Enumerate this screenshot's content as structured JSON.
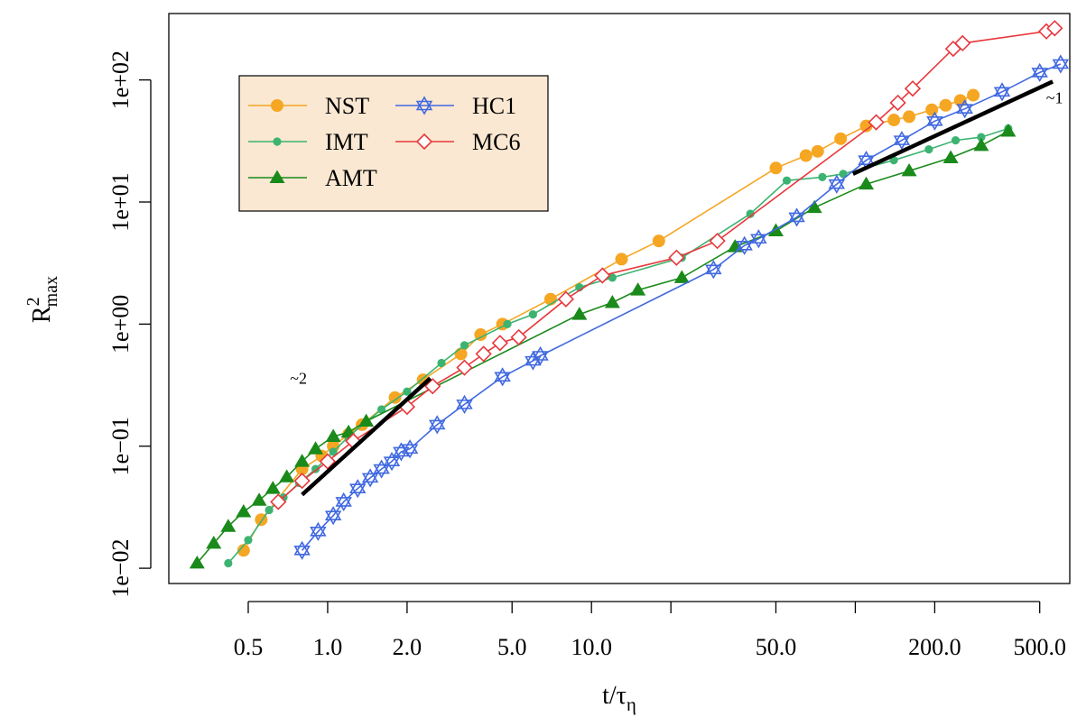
{
  "chart_data": {
    "type": "scatter",
    "x_scale": "log",
    "y_scale": "log",
    "xlim": [
      0.25,
      650
    ],
    "ylim": [
      0.0075,
      350
    ],
    "xlabel": {
      "base": "t/τ",
      "sub": "η"
    },
    "ylabel": {
      "base": "R",
      "sup": "2",
      "sub": "max"
    },
    "x_ticks": [
      0.5,
      1,
      2,
      5,
      10,
      20,
      50,
      100,
      200,
      500
    ],
    "x_tick_labels": [
      "0.5",
      "1.0",
      "2.0",
      "5.0",
      "10.0",
      "",
      "50.0",
      "",
      "200.0",
      "500.0"
    ],
    "y_ticks": [
      0.01,
      0.1,
      1,
      10,
      100
    ],
    "y_tick_labels": [
      "1e−02",
      "1e−01",
      "1e+00",
      "1e+01",
      "1e+02"
    ],
    "legend_position": "top-left",
    "series": [
      {
        "name": "NST",
        "color": "#F5A623",
        "marker": "filled-circle",
        "points": [
          [
            0.48,
            0.014
          ],
          [
            0.56,
            0.025
          ],
          [
            0.8,
            0.065
          ],
          [
            0.95,
            0.083
          ],
          [
            1.05,
            0.1
          ],
          [
            1.2,
            0.125
          ],
          [
            1.35,
            0.15
          ],
          [
            1.8,
            0.25
          ],
          [
            2.3,
            0.35
          ],
          [
            3.2,
            0.57
          ],
          [
            3.8,
            0.82
          ],
          [
            4.6,
            1.0
          ],
          [
            7,
            1.6
          ],
          [
            13,
            3.4
          ],
          [
            18,
            4.8
          ],
          [
            50,
            19
          ],
          [
            65,
            24
          ],
          [
            72,
            26
          ],
          [
            88,
            33
          ],
          [
            110,
            42
          ],
          [
            140,
            47
          ],
          [
            160,
            50
          ],
          [
            195,
            57
          ],
          [
            220,
            62
          ],
          [
            250,
            68
          ],
          [
            280,
            75
          ]
        ]
      },
      {
        "name": "IMT",
        "color": "#3CB371",
        "marker": "small-circle",
        "points": [
          [
            0.42,
            0.011
          ],
          [
            0.5,
            0.017
          ],
          [
            0.6,
            0.03
          ],
          [
            0.68,
            0.038
          ],
          [
            0.78,
            0.05
          ],
          [
            0.9,
            0.065
          ],
          [
            1.05,
            0.09
          ],
          [
            1.2,
            0.12
          ],
          [
            1.6,
            0.2
          ],
          [
            2.0,
            0.28
          ],
          [
            2.7,
            0.48
          ],
          [
            3.3,
            0.67
          ],
          [
            4.8,
            1.0
          ],
          [
            6,
            1.2
          ],
          [
            9,
            2.0
          ],
          [
            12,
            2.4
          ],
          [
            22,
            3.5
          ],
          [
            40,
            8
          ],
          [
            55,
            15
          ],
          [
            75,
            16
          ],
          [
            90,
            17
          ],
          [
            140,
            22
          ],
          [
            190,
            27
          ],
          [
            240,
            32
          ],
          [
            300,
            34
          ],
          [
            380,
            40
          ]
        ]
      },
      {
        "name": "AMT",
        "color": "#1A8A1A",
        "marker": "filled-triangle",
        "points": [
          [
            0.32,
            0.011
          ],
          [
            0.37,
            0.016
          ],
          [
            0.42,
            0.022
          ],
          [
            0.48,
            0.029
          ],
          [
            0.55,
            0.036
          ],
          [
            0.62,
            0.045
          ],
          [
            0.7,
            0.056
          ],
          [
            0.8,
            0.075
          ],
          [
            0.9,
            0.095
          ],
          [
            1.05,
            0.12
          ],
          [
            1.2,
            0.13
          ],
          [
            1.4,
            0.16
          ],
          [
            9,
            1.2
          ],
          [
            12,
            1.5
          ],
          [
            15,
            1.9
          ],
          [
            22,
            2.4
          ],
          [
            35,
            4.3
          ],
          [
            50,
            5.8
          ],
          [
            70,
            9
          ],
          [
            110,
            14
          ],
          [
            160,
            18
          ],
          [
            230,
            23
          ],
          [
            300,
            29
          ],
          [
            380,
            38
          ]
        ]
      },
      {
        "name": "HC1",
        "color": "#4169E1",
        "marker": "hexagram",
        "points": [
          [
            0.8,
            0.014
          ],
          [
            0.92,
            0.02
          ],
          [
            1.05,
            0.027
          ],
          [
            1.15,
            0.035
          ],
          [
            1.3,
            0.045
          ],
          [
            1.45,
            0.055
          ],
          [
            1.6,
            0.065
          ],
          [
            1.75,
            0.075
          ],
          [
            1.9,
            0.09
          ],
          [
            2.05,
            0.095
          ],
          [
            2.6,
            0.15
          ],
          [
            3.3,
            0.22
          ],
          [
            4.6,
            0.37
          ],
          [
            6,
            0.5
          ],
          [
            6.4,
            0.55
          ],
          [
            29,
            2.8
          ],
          [
            38,
            4.4
          ],
          [
            43,
            5
          ],
          [
            60,
            7.5
          ],
          [
            85,
            14
          ],
          [
            110,
            22
          ],
          [
            150,
            32
          ],
          [
            200,
            46
          ],
          [
            260,
            58
          ],
          [
            360,
            80
          ],
          [
            500,
            115
          ],
          [
            600,
            135
          ]
        ]
      },
      {
        "name": "MC6",
        "color": "#E8383D",
        "marker": "open-diamond",
        "points": [
          [
            0.65,
            0.035
          ],
          [
            0.8,
            0.052
          ],
          [
            1.0,
            0.075
          ],
          [
            1.25,
            0.11
          ],
          [
            2.0,
            0.21
          ],
          [
            2.5,
            0.31
          ],
          [
            3.3,
            0.44
          ],
          [
            3.9,
            0.57
          ],
          [
            4.5,
            0.7
          ],
          [
            5.3,
            0.78
          ],
          [
            8,
            1.6
          ],
          [
            11,
            2.5
          ],
          [
            21,
            3.5
          ],
          [
            30,
            4.8
          ],
          [
            120,
            45
          ],
          [
            145,
            65
          ],
          [
            165,
            85
          ],
          [
            235,
            180
          ],
          [
            255,
            200
          ],
          [
            530,
            250
          ],
          [
            570,
            265
          ]
        ]
      }
    ],
    "reference_lines": [
      {
        "label": "~2",
        "from": [
          0.8,
          0.04
        ],
        "to": [
          2.45,
          0.36
        ]
      },
      {
        "label": "~1",
        "from": [
          98,
          17
        ],
        "to": [
          560,
          97
        ]
      }
    ]
  }
}
